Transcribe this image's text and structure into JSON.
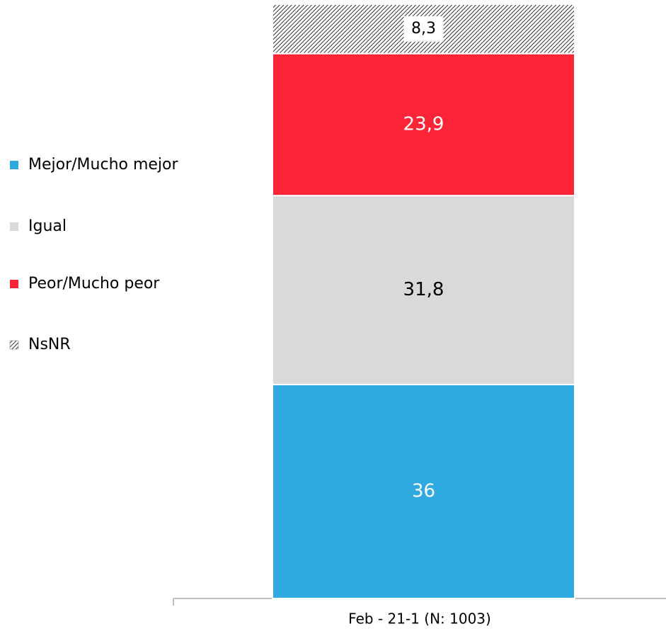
{
  "chart_data": {
    "type": "stacked_bar",
    "categories": [
      "Feb - 21-1 (N: 1003)"
    ],
    "series": [
      {
        "name": "Mejor/Mucho mejor",
        "color": "#2eaae1",
        "values": [
          36
        ],
        "label_color": "#ffffff"
      },
      {
        "name": "Igual",
        "color": "#d9d9d9",
        "values": [
          31.8
        ],
        "value_labels": [
          "31,8"
        ],
        "label_color": "#000000"
      },
      {
        "name": "Peor/Mucho peor",
        "color": "#fc2537",
        "values": [
          23.9
        ],
        "value_labels": [
          "23,9"
        ],
        "label_color": "#ffffff"
      },
      {
        "name": "NsNR",
        "color": "#000000",
        "pattern": "hatch",
        "values": [
          8.3
        ],
        "value_labels": [
          "8,3"
        ],
        "label_color": "#000000"
      }
    ],
    "ylim": [
      0,
      100
    ],
    "legend": "left"
  }
}
